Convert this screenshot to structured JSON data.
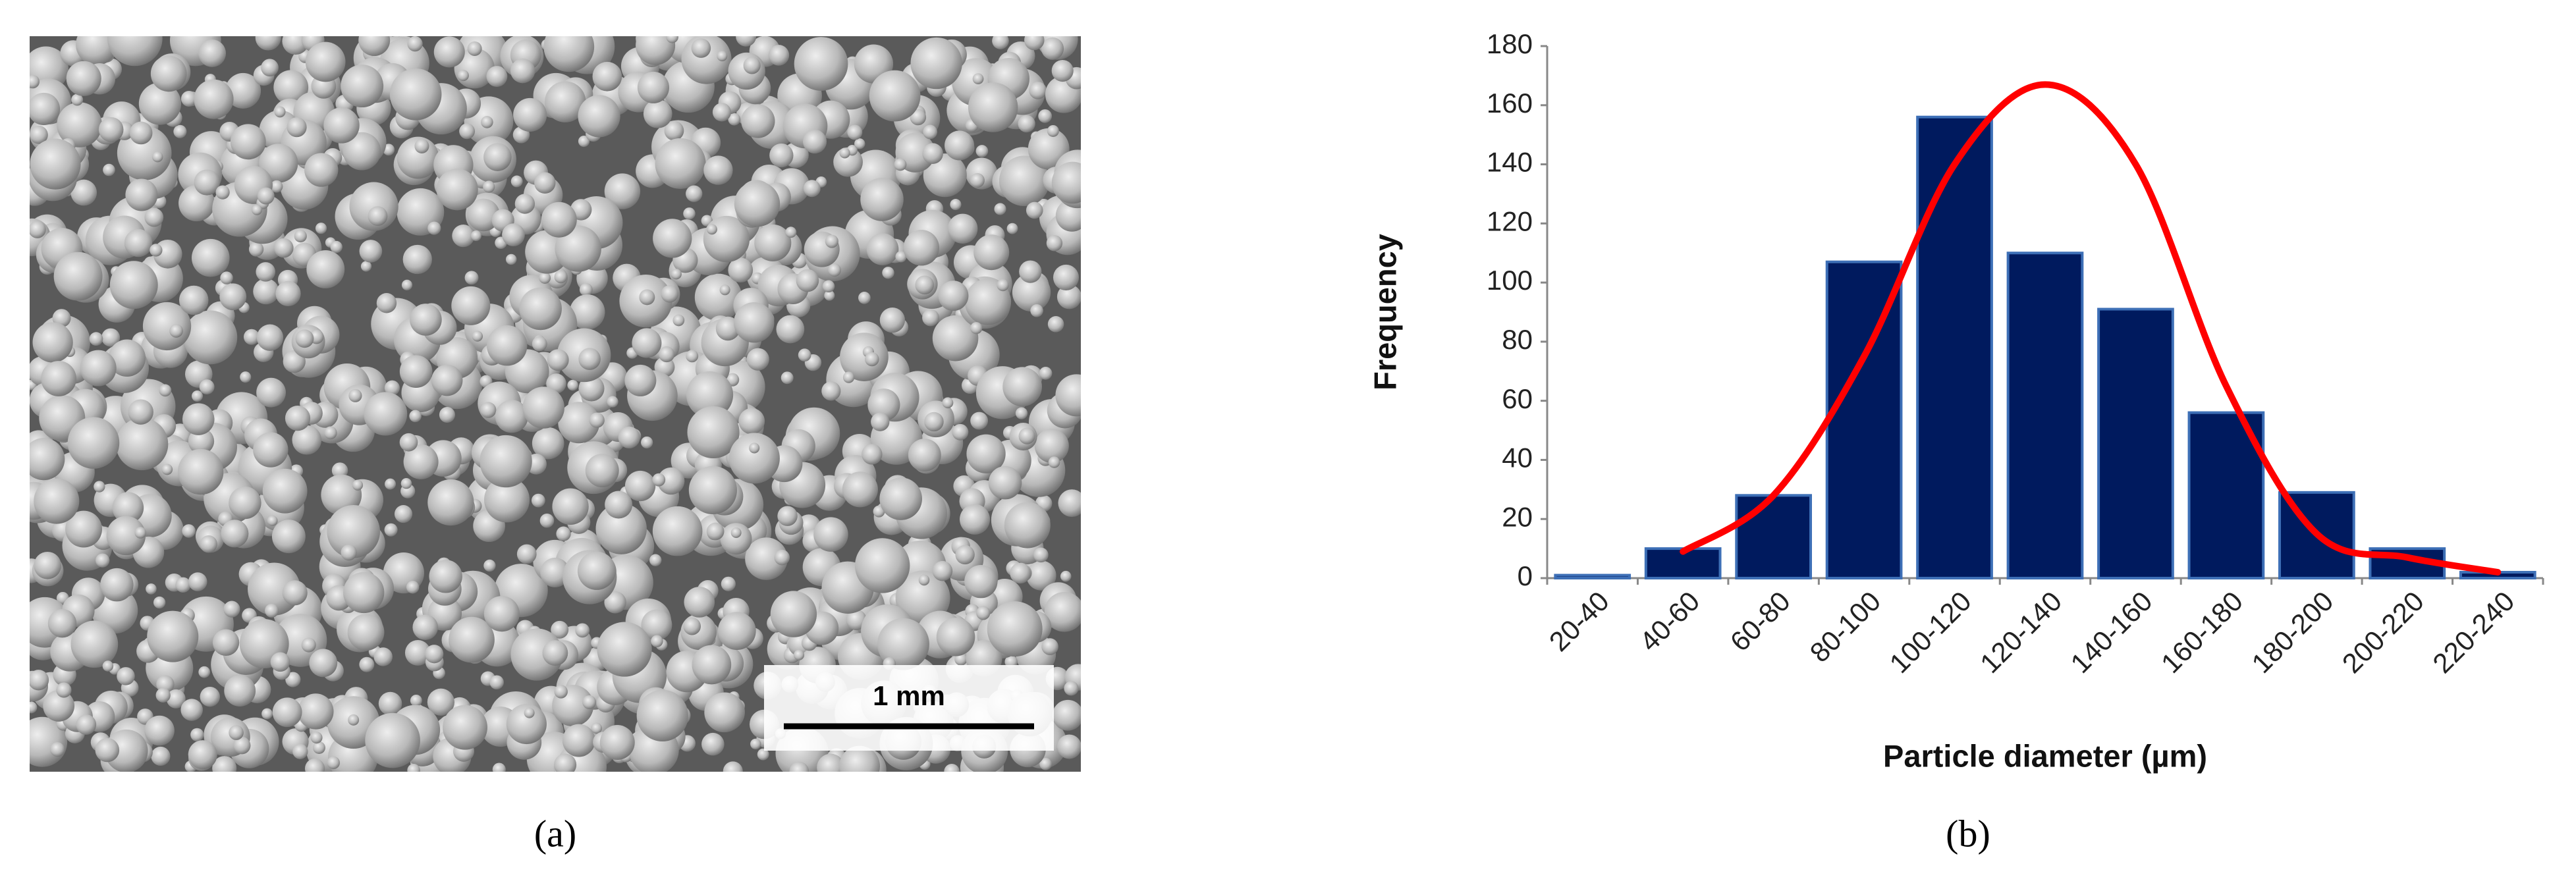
{
  "panel_a": {
    "scale_bar_label": "1 mm",
    "caption": "(a)"
  },
  "chart_data": {
    "type": "bar",
    "caption": "(b)",
    "xlabel": "Particle diameter (µm)",
    "ylabel": "Frequency",
    "categories": [
      "20-40",
      "40-60",
      "60-80",
      "80-100",
      "100-120",
      "120-140",
      "140-160",
      "160-180",
      "180-200",
      "200-220",
      "220-240"
    ],
    "values": [
      1,
      10,
      28,
      107,
      156,
      110,
      91,
      56,
      29,
      10,
      2
    ],
    "color": "#001a5e",
    "curve": {
      "color": "#ff0000",
      "values": [
        null,
        9,
        28,
        75,
        140,
        167,
        140,
        65,
        15,
        7,
        2
      ]
    },
    "ylim": [
      0,
      180
    ],
    "yticks": [
      0,
      20,
      40,
      60,
      80,
      100,
      120,
      140,
      160,
      180
    ]
  }
}
